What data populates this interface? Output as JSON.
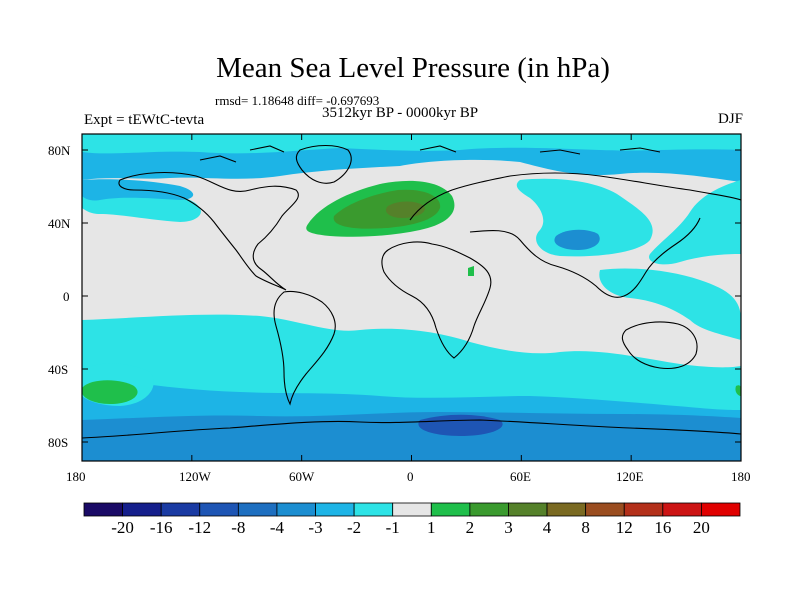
{
  "title": "Mean Sea Level Pressure (in hPa)",
  "stats": "rmsd= 1.18648 diff= -0.697693",
  "left_label": "Expt = tEWtC-tevta",
  "center_label": "3512kyr BP - 0000kyr BP",
  "right_label": "DJF",
  "lon_ticks": [
    "180",
    "120W",
    "60W",
    "0",
    "60E",
    "120E",
    "180"
  ],
  "lat_ticks": [
    "80N",
    "40N",
    "0",
    "40S",
    "80S"
  ],
  "colorbar": {
    "labels": [
      "-20",
      "-16",
      "-12",
      "-8",
      "-4",
      "-3",
      "-2",
      "-1",
      "1",
      "2",
      "3",
      "4",
      "8",
      "12",
      "16",
      "20"
    ],
    "colors": [
      "#1a0a66",
      "#151f8c",
      "#1a3ba3",
      "#1e55b4",
      "#1e6fc0",
      "#1c8ed1",
      "#1db4e6",
      "#2de3e6",
      "#e6e6e6",
      "#1fbf4b",
      "#3a9a2e",
      "#55812a",
      "#7a6a22",
      "#9a4d20",
      "#b3301a",
      "#cc1414",
      "#e00000"
    ]
  },
  "colors": {
    "background": "#e6e6e6",
    "light_blue": "#1db4e6",
    "cyan": "#2de3e6",
    "mid_blue": "#1c8ed1",
    "deep_blue": "#1e55b4",
    "green": "#1fbf4b",
    "dark_green": "#3a9a2e",
    "olive": "#55812a"
  }
}
